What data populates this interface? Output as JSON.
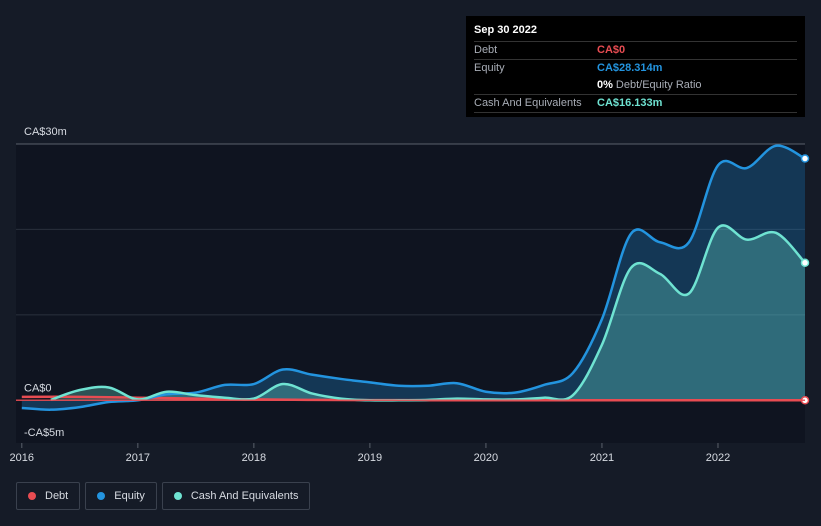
{
  "tooltip": {
    "date": "Sep 30 2022",
    "debt_label": "Debt",
    "debt_value": "CA$0",
    "equity_label": "Equity",
    "equity_value": "CA$28.314m",
    "ratio_pct": "0%",
    "ratio_label": "Debt/Equity Ratio",
    "cash_label": "Cash And Equivalents",
    "cash_value": "CA$16.133m"
  },
  "legend": [
    {
      "label": "Debt",
      "color": "#e84c52"
    },
    {
      "label": "Equity",
      "color": "#2394df"
    },
    {
      "label": "Cash And Equivalents",
      "color": "#6fe3d2"
    }
  ],
  "chart_data": {
    "type": "area",
    "y_tick_labels": [
      {
        "value": 30,
        "label": "CA$30m"
      },
      {
        "value": 0,
        "label": "CA$0"
      },
      {
        "value": -5,
        "label": "-CA$5m"
      }
    ],
    "ylim": [
      -5,
      30
    ],
    "xlim": [
      2015.95,
      2022.75
    ],
    "x_tick_labels": [
      "2016",
      "2017",
      "2018",
      "2019",
      "2020",
      "2021",
      "2022"
    ],
    "x_ticks": [
      2016,
      2017,
      2018,
      2019,
      2020,
      2021,
      2022
    ],
    "grid": true,
    "legend_position": "bottom-left",
    "colors": {
      "debt": "#e84c52",
      "equity": "#2394df",
      "cash": "#6fe3d2"
    },
    "series": [
      {
        "name": "Debt",
        "x": [
          2016.0,
          2016.5,
          2017.0,
          2017.5,
          2018.0,
          2018.5,
          2019.0,
          2019.5,
          2020.0,
          2020.5,
          2021.0,
          2021.5,
          2022.0,
          2022.5,
          2022.75
        ],
        "values": [
          0.4,
          0.4,
          0.3,
          0.2,
          0.1,
          0.05,
          0.02,
          0.01,
          0.01,
          0.0,
          0.0,
          0.0,
          0.0,
          0.0,
          0.0
        ]
      },
      {
        "name": "Equity",
        "x": [
          2016.0,
          2016.25,
          2016.5,
          2016.75,
          2017.0,
          2017.25,
          2017.5,
          2017.75,
          2018.0,
          2018.25,
          2018.5,
          2018.75,
          2019.0,
          2019.25,
          2019.5,
          2019.75,
          2020.0,
          2020.25,
          2020.5,
          2020.75,
          2021.0,
          2021.25,
          2021.5,
          2021.75,
          2022.0,
          2022.25,
          2022.5,
          2022.75
        ],
        "values": [
          -0.9,
          -1.1,
          -0.8,
          -0.2,
          0.0,
          0.7,
          0.9,
          1.8,
          1.9,
          3.6,
          3.0,
          2.5,
          2.1,
          1.7,
          1.7,
          2.0,
          1.0,
          0.9,
          1.8,
          3.2,
          9.5,
          19.5,
          18.5,
          18.5,
          27.5,
          27.2,
          29.8,
          28.3
        ]
      },
      {
        "name": "Cash And Equivalents",
        "x": [
          2016.25,
          2016.5,
          2016.75,
          2017.0,
          2017.25,
          2017.5,
          2017.75,
          2018.0,
          2018.25,
          2018.5,
          2018.75,
          2019.0,
          2019.25,
          2019.5,
          2019.75,
          2020.0,
          2020.25,
          2020.5,
          2020.75,
          2021.0,
          2021.25,
          2021.5,
          2021.75,
          2022.0,
          2022.25,
          2022.5,
          2022.75
        ],
        "values": [
          0.05,
          1.2,
          1.5,
          0.1,
          1.0,
          0.6,
          0.3,
          0.2,
          1.9,
          0.8,
          0.2,
          0.0,
          0.0,
          0.05,
          0.2,
          0.1,
          0.1,
          0.3,
          0.6,
          6.5,
          15.5,
          14.8,
          12.5,
          20.2,
          18.8,
          19.6,
          16.1
        ]
      }
    ]
  }
}
